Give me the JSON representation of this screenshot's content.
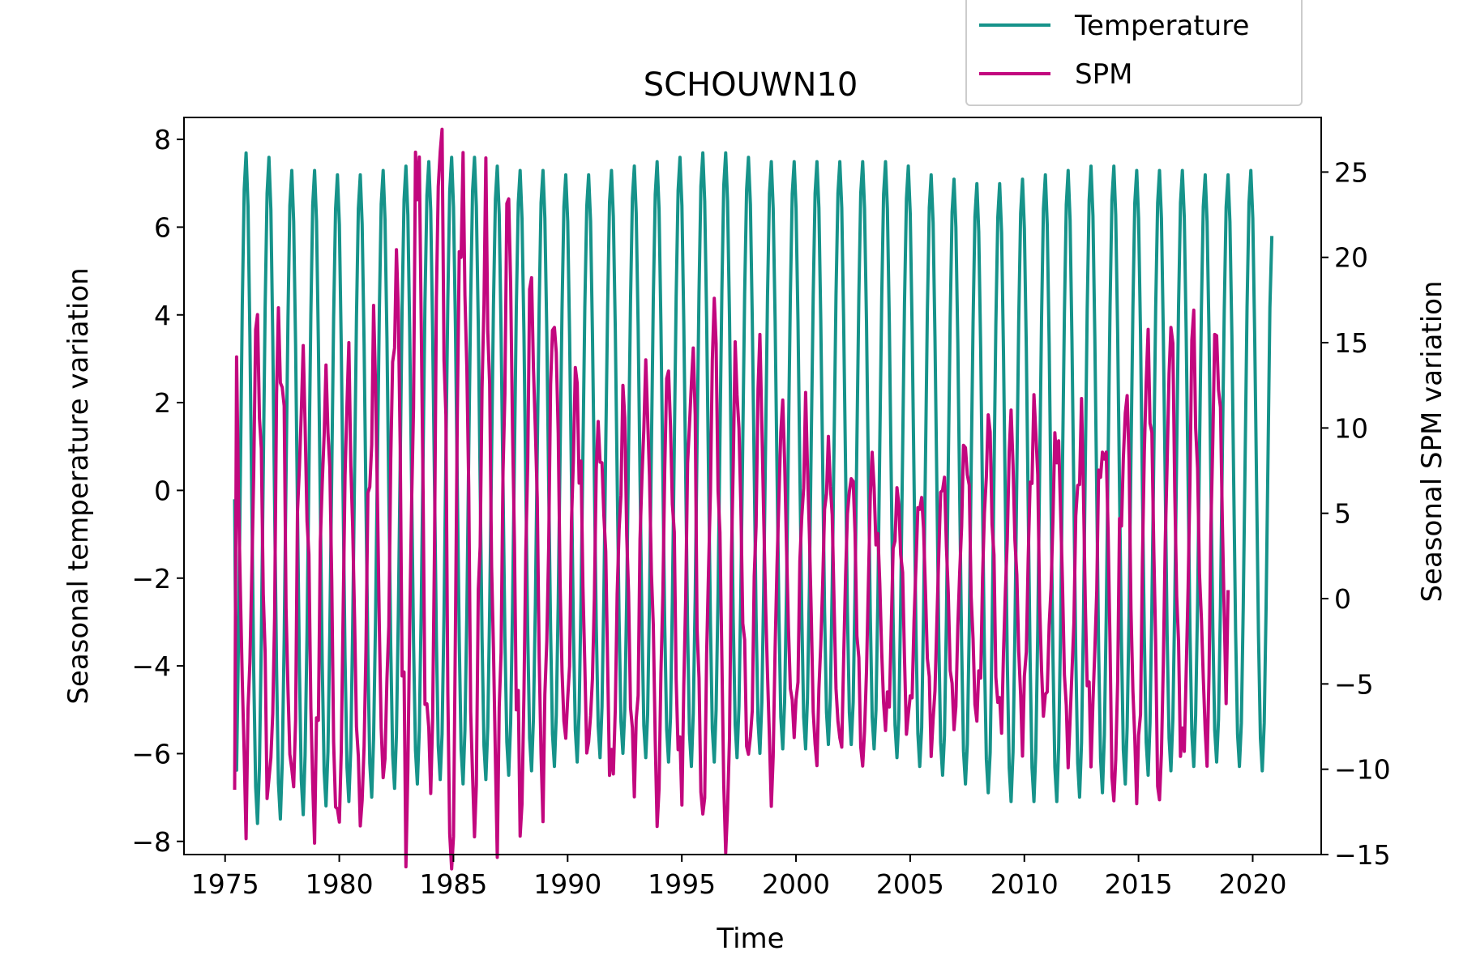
{
  "chart_data": {
    "type": "line",
    "title": "SCHOUWN10",
    "xlabel": "Time",
    "ylabel_left": "Seasonal temperature variation",
    "ylabel_right": "Seasonal SPM variation",
    "xlim": [
      1973.2,
      2023.0
    ],
    "ylim_left": [
      -8.3,
      8.5
    ],
    "ylim_right": [
      -15,
      28.2
    ],
    "x_ticks": [
      1975,
      1980,
      1985,
      1990,
      1995,
      2000,
      2005,
      2010,
      2015,
      2020
    ],
    "y_left_ticks": [
      -8,
      -6,
      -4,
      -2,
      0,
      2,
      4,
      6,
      8
    ],
    "y_right_ticks": [
      -15,
      -10,
      -5,
      0,
      5,
      10,
      15,
      20,
      25
    ],
    "grid": false,
    "legend": {
      "placement": "top-right, above plot"
    },
    "colors": {
      "temperature": "#16938a",
      "spm": "#c2077e"
    },
    "series": [
      {
        "name": "Temperature",
        "axis": "left",
        "x_start": 1975.42,
        "x_end": 2020.83,
        "start_value": -0.2,
        "end_value": 5.8,
        "yearly_peaks": [
          7.7,
          7.6,
          7.3,
          7.3,
          7.2,
          7.2,
          7.3,
          7.4,
          7.5,
          7.6,
          7.6,
          7.4,
          7.3,
          7.3,
          7.2,
          7.2,
          7.3,
          7.4,
          7.5,
          7.6,
          7.7,
          7.7,
          7.6,
          7.5,
          7.5,
          7.5,
          7.5,
          7.5,
          7.5,
          7.4,
          7.2,
          7.1,
          7.0,
          7.0,
          7.1,
          7.2,
          7.3,
          7.4,
          7.4,
          7.3,
          7.3,
          7.3,
          7.2,
          7.2,
          7.3,
          7.3
        ],
        "yearly_troughs": [
          -7.6,
          -7.5,
          -7.4,
          -7.2,
          -7.1,
          -7.0,
          -6.8,
          -6.7,
          -6.6,
          -6.7,
          -6.6,
          -6.5,
          -6.4,
          -6.3,
          -6.2,
          -6.1,
          -6.0,
          -6.1,
          -6.2,
          -6.3,
          -6.2,
          -6.1,
          -6.0,
          -5.9,
          -5.9,
          -5.8,
          -5.8,
          -5.9,
          -6.1,
          -6.3,
          -6.5,
          -6.7,
          -6.9,
          -7.1,
          -7.1,
          -7.1,
          -7.0,
          -6.9,
          -6.7,
          -6.5,
          -6.4,
          -6.3,
          -6.2,
          -6.3,
          -6.4
        ]
      },
      {
        "name": "SPM",
        "axis": "right",
        "x_start": 1975.42,
        "x_end": 2018.92,
        "start_value": -11.2,
        "end_value": 0.5,
        "yearly_peaks": [
          15.5,
          15.4,
          14.5,
          13.0,
          12.0,
          10.5,
          17.0,
          23.8,
          24.6,
          26.2,
          24.6,
          21.5,
          19.3,
          16.2,
          13.0,
          10.5,
          10.0,
          12.0,
          14.5,
          15.3,
          14.8,
          13.5,
          12.5,
          11.0,
          10.0,
          9.7,
          9.5,
          8.0,
          6.0,
          7.0,
          8.0,
          9.0,
          9.5,
          10.0,
          9.8,
          9.5,
          9.0,
          10.5,
          12.5,
          13.0,
          13.0,
          14.0,
          15.0,
          15.3
        ],
        "yearly_troughs": [
          -11.0,
          -11.0,
          -11.2,
          -11.5,
          -12.0,
          -13.0,
          -12.5,
          -11.0,
          -11.5,
          -11.5,
          -11.3,
          -10.8,
          -10.5,
          -10.3,
          -10.0,
          -9.8,
          -9.8,
          -10.0,
          -10.5,
          -11.0,
          -11.5,
          -12.0,
          -11.0,
          -10.0,
          -9.5,
          -9.0,
          -8.5,
          -8.0,
          -8.0,
          -7.5,
          -7.5,
          -7.5,
          -7.0,
          -7.0,
          -7.0,
          -7.5,
          -8.0,
          -8.5,
          -9.0,
          -9.5,
          -9.5,
          -9.5,
          -9.5
        ]
      }
    ]
  }
}
